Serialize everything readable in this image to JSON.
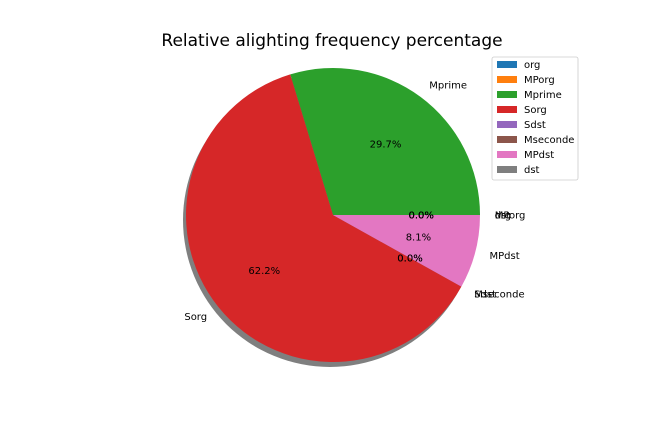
{
  "chart_data": {
    "type": "pie",
    "title": "Relative alighting frequency percentage",
    "labels": [
      "org",
      "MPorg",
      "Mprime",
      "Sorg",
      "Sdst",
      "Mseconde",
      "MPdst",
      "dst"
    ],
    "values": [
      0.0,
      0.0,
      29.7,
      62.2,
      0.0,
      0.0,
      8.1,
      0.0
    ],
    "value_labels": [
      "0.0%",
      "0.0%",
      "29.7%",
      "62.2%",
      "0.0%",
      "0.0%",
      "8.1%",
      "0.0%"
    ],
    "colors": [
      "#1f77b4",
      "#ff7f0e",
      "#2ca02c",
      "#d62728",
      "#9467bd",
      "#8c564b",
      "#e377c2",
      "#7f7f7f"
    ],
    "start_angle_deg": 0,
    "direction": "counterclockwise",
    "shadow": true,
    "legend_position": "top-right"
  }
}
